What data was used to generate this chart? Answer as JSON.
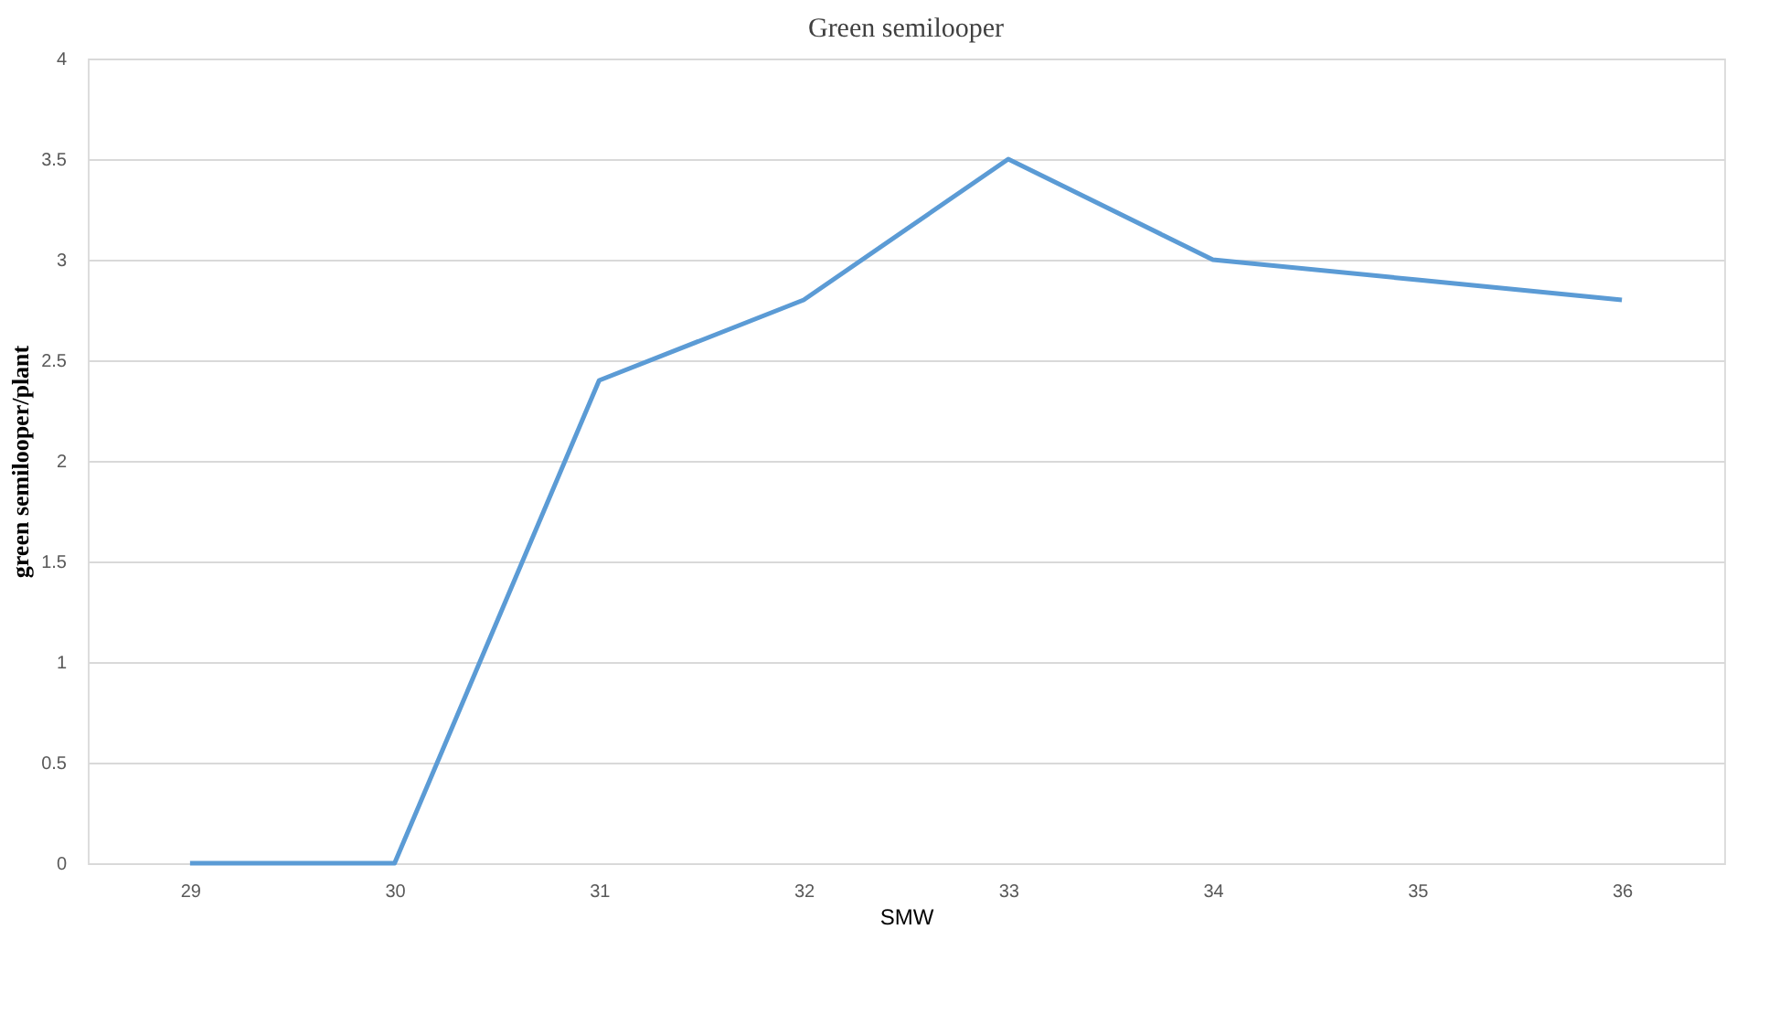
{
  "chart_data": {
    "type": "line",
    "title": "Green semilooper",
    "xlabel": "SMW",
    "ylabel": "green semilooper/plant",
    "categories": [
      "29",
      "30",
      "31",
      "32",
      "33",
      "34",
      "35",
      "36"
    ],
    "series": [
      {
        "color": "#5b9bd5",
        "values": [
          0,
          0,
          2.4,
          2.8,
          3.5,
          3.0,
          2.9,
          2.8
        ]
      }
    ],
    "ylim": [
      0,
      4
    ],
    "yticks": [
      0,
      0.5,
      1,
      1.5,
      2,
      2.5,
      3,
      3.5,
      4
    ],
    "grid": "y",
    "marker": "none",
    "line_style": "solid"
  }
}
